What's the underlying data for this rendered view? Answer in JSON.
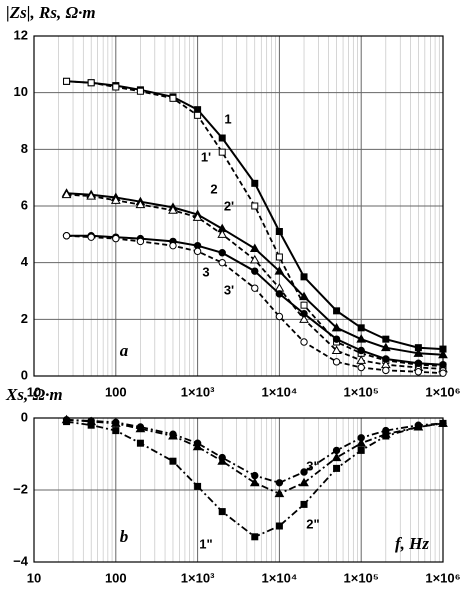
{
  "chart_data": [
    {
      "type": "line",
      "y_label": "|Zs|, Rs, Ω·m",
      "panel_label": "a",
      "x": [
        25,
        50,
        100,
        200,
        500,
        1000,
        2000,
        5000,
        10000,
        20000,
        50000,
        100000,
        200000,
        500000,
        1000000
      ],
      "xlim": [
        10,
        1000000
      ],
      "log_x": true,
      "xticks": [
        10,
        100,
        {
          "value": 1000,
          "label": "1×10³"
        },
        {
          "value": 10000,
          "label": "1×10⁴"
        },
        {
          "value": 100000,
          "label": "1×10⁵"
        },
        {
          "value": 1000000,
          "label": "1×10⁶"
        }
      ],
      "ylim": [
        0,
        12
      ],
      "yticks": [
        0,
        2,
        4,
        6,
        8,
        10,
        12
      ],
      "grid": true,
      "series": [
        {
          "name": "1",
          "color": "#000000",
          "dash": "solid",
          "marker": "square-filled",
          "values": [
            10.4,
            10.35,
            10.25,
            10.1,
            9.85,
            9.4,
            8.4,
            6.8,
            5.1,
            3.5,
            2.3,
            1.7,
            1.3,
            1.0,
            0.95
          ]
        },
        {
          "name": "1'",
          "color": "#000000",
          "dash": "dashed",
          "marker": "square-open",
          "values": [
            10.4,
            10.35,
            10.2,
            10.05,
            9.8,
            9.2,
            7.9,
            6.0,
            4.2,
            2.5,
            1.2,
            0.8,
            0.55,
            0.4,
            0.35
          ]
        },
        {
          "name": "2",
          "color": "#000000",
          "dash": "solid",
          "marker": "triangle-filled",
          "values": [
            6.45,
            6.4,
            6.3,
            6.15,
            5.95,
            5.7,
            5.2,
            4.5,
            3.7,
            2.8,
            1.7,
            1.3,
            1.0,
            0.8,
            0.75
          ]
        },
        {
          "name": "2'",
          "color": "#000000",
          "dash": "dashed",
          "marker": "triangle-open",
          "values": [
            6.4,
            6.35,
            6.2,
            6.05,
            5.85,
            5.6,
            5.0,
            4.1,
            3.1,
            2.0,
            0.9,
            0.55,
            0.4,
            0.3,
            0.25
          ]
        },
        {
          "name": "3",
          "color": "#000000",
          "dash": "solid",
          "marker": "circle-filled",
          "values": [
            4.95,
            4.95,
            4.9,
            4.85,
            4.75,
            4.6,
            4.35,
            3.7,
            2.9,
            2.2,
            1.3,
            0.9,
            0.6,
            0.45,
            0.4
          ]
        },
        {
          "name": "3'",
          "color": "#000000",
          "dash": "dashed",
          "marker": "circle-open",
          "values": [
            4.95,
            4.9,
            4.85,
            4.75,
            4.6,
            4.4,
            4.0,
            3.1,
            2.1,
            1.2,
            0.5,
            0.3,
            0.2,
            0.15,
            0.1
          ]
        }
      ]
    },
    {
      "type": "line",
      "y_label": "Xs, Ω·m",
      "panel_label": "b",
      "x_label": "f, Hz",
      "x": [
        25,
        50,
        100,
        200,
        500,
        1000,
        2000,
        5000,
        10000,
        20000,
        50000,
        100000,
        200000,
        500000,
        1000000
      ],
      "xlim": [
        10,
        1000000
      ],
      "log_x": true,
      "xticks": [
        10,
        100,
        {
          "value": 1000,
          "label": "1×10³"
        },
        {
          "value": 10000,
          "label": "1×10⁴"
        },
        {
          "value": 100000,
          "label": "1×10⁵"
        },
        {
          "value": 1000000,
          "label": "1×10⁶"
        }
      ],
      "ylim": [
        -4,
        0
      ],
      "yticks": [
        {
          "value": -4,
          "label": "−4"
        },
        {
          "value": -2,
          "label": "−2"
        },
        0
      ],
      "grid": true,
      "series": [
        {
          "name": "1\"",
          "color": "#000000",
          "dash": "dashdot",
          "marker": "square-filled",
          "values": [
            -0.1,
            -0.2,
            -0.35,
            -0.7,
            -1.2,
            -1.9,
            -2.6,
            -3.3,
            -3.0,
            -2.4,
            -1.4,
            -0.9,
            -0.5,
            -0.25,
            -0.15
          ]
        },
        {
          "name": "2\"",
          "color": "#000000",
          "dash": "dashdot",
          "marker": "triangle-filled",
          "values": [
            -0.05,
            -0.1,
            -0.15,
            -0.3,
            -0.5,
            -0.8,
            -1.2,
            -1.8,
            -2.1,
            -1.8,
            -1.1,
            -0.7,
            -0.45,
            -0.25,
            -0.15
          ]
        },
        {
          "name": "3\"",
          "color": "#000000",
          "dash": "dashdot",
          "marker": "circle-filled",
          "values": [
            -0.05,
            -0.08,
            -0.12,
            -0.25,
            -0.45,
            -0.7,
            -1.1,
            -1.6,
            -1.8,
            -1.5,
            -0.9,
            -0.55,
            -0.35,
            -0.2,
            -0.15
          ]
        }
      ]
    }
  ]
}
